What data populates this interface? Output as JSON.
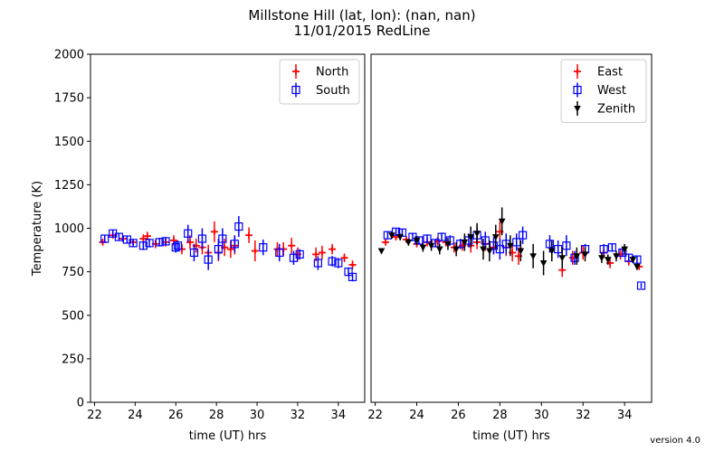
{
  "figure": {
    "title_line1": "Millstone Hill  (lat, lon):  (nan, nan)",
    "title_line2": "11/01/2015 RedLine",
    "version": "version 4.0"
  },
  "colors": {
    "North": "#ff0000",
    "South": "#0000ff",
    "East": "#ff0000",
    "West": "#0000ff",
    "Zenith": "#000000"
  },
  "chart_data": [
    {
      "type": "scatter",
      "panel": "left",
      "xlabel": "time (UT) hrs",
      "ylabel": "Temperature (K)",
      "xlim": [
        21.8,
        35.3
      ],
      "ylim": [
        0,
        2000
      ],
      "xticks": [
        22,
        24,
        26,
        28,
        30,
        32,
        34
      ],
      "yticks": [
        0,
        250,
        500,
        750,
        1000,
        1250,
        1500,
        1750,
        2000
      ],
      "legend_position": "top-right",
      "series": [
        {
          "name": "North",
          "marker": "plus",
          "points": [
            {
              "x": 22.4,
              "y": 920,
              "err": 20
            },
            {
              "x": 22.9,
              "y": 960,
              "err": 20
            },
            {
              "x": 23.4,
              "y": 940,
              "err": 20
            },
            {
              "x": 23.9,
              "y": 920,
              "err": 20
            },
            {
              "x": 24.4,
              "y": 940,
              "err": 25
            },
            {
              "x": 24.6,
              "y": 955,
              "err": 25
            },
            {
              "x": 25.0,
              "y": 910,
              "err": 25
            },
            {
              "x": 25.5,
              "y": 920,
              "err": 25
            },
            {
              "x": 25.9,
              "y": 930,
              "err": 30
            },
            {
              "x": 26.3,
              "y": 880,
              "err": 30
            },
            {
              "x": 26.7,
              "y": 920,
              "err": 40
            },
            {
              "x": 27.0,
              "y": 900,
              "err": 40
            },
            {
              "x": 27.3,
              "y": 890,
              "err": 40
            },
            {
              "x": 27.6,
              "y": 860,
              "err": 45
            },
            {
              "x": 27.9,
              "y": 980,
              "err": 60
            },
            {
              "x": 28.1,
              "y": 860,
              "err": 50
            },
            {
              "x": 28.4,
              "y": 890,
              "err": 50
            },
            {
              "x": 28.7,
              "y": 880,
              "err": 50
            },
            {
              "x": 28.9,
              "y": 900,
              "err": 50
            },
            {
              "x": 29.6,
              "y": 960,
              "err": 45
            },
            {
              "x": 29.9,
              "y": 870,
              "err": 60
            },
            {
              "x": 31.0,
              "y": 880,
              "err": 40
            },
            {
              "x": 31.3,
              "y": 880,
              "err": 40
            },
            {
              "x": 31.7,
              "y": 900,
              "err": 45
            },
            {
              "x": 32.0,
              "y": 850,
              "err": 40
            },
            {
              "x": 32.9,
              "y": 850,
              "err": 40
            },
            {
              "x": 33.2,
              "y": 860,
              "err": 40
            },
            {
              "x": 33.7,
              "y": 880,
              "err": 30
            },
            {
              "x": 34.3,
              "y": 830,
              "err": 25
            },
            {
              "x": 34.7,
              "y": 790,
              "err": 25
            }
          ]
        },
        {
          "name": "South",
          "marker": "square",
          "points": [
            {
              "x": 22.5,
              "y": 940,
              "err": 20
            },
            {
              "x": 22.9,
              "y": 970,
              "err": 20
            },
            {
              "x": 23.2,
              "y": 950,
              "err": 20
            },
            {
              "x": 23.6,
              "y": 935,
              "err": 20
            },
            {
              "x": 23.9,
              "y": 915,
              "err": 20
            },
            {
              "x": 24.4,
              "y": 900,
              "err": 25
            },
            {
              "x": 24.7,
              "y": 915,
              "err": 25
            },
            {
              "x": 25.2,
              "y": 920,
              "err": 25
            },
            {
              "x": 25.5,
              "y": 925,
              "err": 25
            },
            {
              "x": 26.0,
              "y": 890,
              "err": 30
            },
            {
              "x": 26.1,
              "y": 900,
              "err": 30
            },
            {
              "x": 26.6,
              "y": 970,
              "err": 50
            },
            {
              "x": 26.9,
              "y": 860,
              "err": 50
            },
            {
              "x": 27.3,
              "y": 940,
              "err": 60
            },
            {
              "x": 27.6,
              "y": 820,
              "err": 60
            },
            {
              "x": 28.1,
              "y": 880,
              "err": 60
            },
            {
              "x": 28.3,
              "y": 940,
              "err": 60
            },
            {
              "x": 28.9,
              "y": 910,
              "err": 50
            },
            {
              "x": 29.1,
              "y": 1010,
              "err": 60
            },
            {
              "x": 30.3,
              "y": 890,
              "err": 45
            },
            {
              "x": 31.1,
              "y": 860,
              "err": 50
            },
            {
              "x": 31.8,
              "y": 830,
              "err": 40
            },
            {
              "x": 32.1,
              "y": 850,
              "err": 30
            },
            {
              "x": 33.0,
              "y": 800,
              "err": 40
            },
            {
              "x": 33.7,
              "y": 810,
              "err": 30
            },
            {
              "x": 34.0,
              "y": 800,
              "err": 30
            },
            {
              "x": 34.5,
              "y": 750,
              "err": 25
            },
            {
              "x": 34.7,
              "y": 720,
              "err": 25
            }
          ]
        }
      ]
    },
    {
      "type": "scatter",
      "panel": "right",
      "xlabel": "time (UT) hrs",
      "ylabel": "",
      "xlim": [
        21.8,
        35.3
      ],
      "ylim": [
        0,
        2000
      ],
      "xticks": [
        22,
        24,
        26,
        28,
        30,
        32,
        34
      ],
      "yticks": [],
      "legend_position": "top-right",
      "series": [
        {
          "name": "East",
          "marker": "plus",
          "points": [
            {
              "x": 22.5,
              "y": 920,
              "err": 20
            },
            {
              "x": 23.0,
              "y": 950,
              "err": 20
            },
            {
              "x": 23.5,
              "y": 935,
              "err": 20
            },
            {
              "x": 24.0,
              "y": 910,
              "err": 20
            },
            {
              "x": 24.5,
              "y": 920,
              "err": 25
            },
            {
              "x": 25.0,
              "y": 925,
              "err": 25
            },
            {
              "x": 25.4,
              "y": 920,
              "err": 25
            },
            {
              "x": 25.8,
              "y": 890,
              "err": 30
            },
            {
              "x": 26.2,
              "y": 900,
              "err": 30
            },
            {
              "x": 26.6,
              "y": 900,
              "err": 40
            },
            {
              "x": 26.9,
              "y": 920,
              "err": 40
            },
            {
              "x": 27.3,
              "y": 910,
              "err": 40
            },
            {
              "x": 27.7,
              "y": 890,
              "err": 40
            },
            {
              "x": 28.0,
              "y": 980,
              "err": 60
            },
            {
              "x": 28.3,
              "y": 890,
              "err": 50
            },
            {
              "x": 28.6,
              "y": 860,
              "err": 50
            },
            {
              "x": 28.9,
              "y": 840,
              "err": 50
            },
            {
              "x": 31.0,
              "y": 760,
              "err": 40
            },
            {
              "x": 31.5,
              "y": 830,
              "err": 40
            },
            {
              "x": 32.0,
              "y": 860,
              "err": 40
            },
            {
              "x": 33.0,
              "y": 860,
              "err": 30
            },
            {
              "x": 33.3,
              "y": 800,
              "err": 30
            },
            {
              "x": 33.8,
              "y": 850,
              "err": 30
            },
            {
              "x": 34.2,
              "y": 810,
              "err": 25
            },
            {
              "x": 34.7,
              "y": 780,
              "err": 20
            }
          ]
        },
        {
          "name": "West",
          "marker": "square",
          "points": [
            {
              "x": 22.6,
              "y": 960,
              "err": 20
            },
            {
              "x": 23.0,
              "y": 980,
              "err": 20
            },
            {
              "x": 23.3,
              "y": 975,
              "err": 20
            },
            {
              "x": 23.8,
              "y": 950,
              "err": 20
            },
            {
              "x": 24.1,
              "y": 930,
              "err": 20
            },
            {
              "x": 24.5,
              "y": 940,
              "err": 25
            },
            {
              "x": 24.9,
              "y": 915,
              "err": 25
            },
            {
              "x": 25.2,
              "y": 950,
              "err": 25
            },
            {
              "x": 25.6,
              "y": 930,
              "err": 30
            },
            {
              "x": 26.1,
              "y": 910,
              "err": 30
            },
            {
              "x": 26.5,
              "y": 930,
              "err": 40
            },
            {
              "x": 26.9,
              "y": 960,
              "err": 50
            },
            {
              "x": 27.3,
              "y": 930,
              "err": 50
            },
            {
              "x": 27.7,
              "y": 900,
              "err": 50
            },
            {
              "x": 28.0,
              "y": 880,
              "err": 60
            },
            {
              "x": 28.3,
              "y": 910,
              "err": 60
            },
            {
              "x": 28.8,
              "y": 920,
              "err": 50
            },
            {
              "x": 29.1,
              "y": 960,
              "err": 50
            },
            {
              "x": 30.4,
              "y": 910,
              "err": 50
            },
            {
              "x": 30.8,
              "y": 880,
              "err": 50
            },
            {
              "x": 31.2,
              "y": 900,
              "err": 60
            },
            {
              "x": 31.6,
              "y": 830,
              "err": 40
            },
            {
              "x": 32.1,
              "y": 880,
              "err": 30
            },
            {
              "x": 33.0,
              "y": 880,
              "err": 30
            },
            {
              "x": 33.4,
              "y": 890,
              "err": 25
            },
            {
              "x": 33.9,
              "y": 860,
              "err": 25
            },
            {
              "x": 34.2,
              "y": 830,
              "err": 25
            },
            {
              "x": 34.6,
              "y": 820,
              "err": 20
            },
            {
              "x": 34.8,
              "y": 670,
              "err": 15
            }
          ]
        },
        {
          "name": "Zenith",
          "marker": "triangle",
          "points": [
            {
              "x": 22.3,
              "y": 870,
              "err": 15
            },
            {
              "x": 22.8,
              "y": 960,
              "err": 20
            },
            {
              "x": 23.2,
              "y": 950,
              "err": 20
            },
            {
              "x": 23.6,
              "y": 920,
              "err": 20
            },
            {
              "x": 24.0,
              "y": 930,
              "err": 25
            },
            {
              "x": 24.3,
              "y": 890,
              "err": 25
            },
            {
              "x": 24.7,
              "y": 900,
              "err": 30
            },
            {
              "x": 25.1,
              "y": 880,
              "err": 30
            },
            {
              "x": 25.5,
              "y": 910,
              "err": 35
            },
            {
              "x": 25.9,
              "y": 880,
              "err": 40
            },
            {
              "x": 26.3,
              "y": 920,
              "err": 50
            },
            {
              "x": 26.6,
              "y": 950,
              "err": 60
            },
            {
              "x": 26.9,
              "y": 970,
              "err": 60
            },
            {
              "x": 27.2,
              "y": 880,
              "err": 60
            },
            {
              "x": 27.5,
              "y": 870,
              "err": 60
            },
            {
              "x": 27.8,
              "y": 950,
              "err": 70
            },
            {
              "x": 28.1,
              "y": 1040,
              "err": 80
            },
            {
              "x": 28.5,
              "y": 900,
              "err": 60
            },
            {
              "x": 29.0,
              "y": 870,
              "err": 60
            },
            {
              "x": 29.6,
              "y": 840,
              "err": 70
            },
            {
              "x": 30.1,
              "y": 800,
              "err": 70
            },
            {
              "x": 30.5,
              "y": 870,
              "err": 60
            },
            {
              "x": 31.0,
              "y": 830,
              "err": 60
            },
            {
              "x": 31.7,
              "y": 840,
              "err": 50
            },
            {
              "x": 32.1,
              "y": 850,
              "err": 40
            },
            {
              "x": 32.9,
              "y": 830,
              "err": 30
            },
            {
              "x": 33.2,
              "y": 820,
              "err": 30
            },
            {
              "x": 33.6,
              "y": 840,
              "err": 30
            },
            {
              "x": 34.0,
              "y": 880,
              "err": 30
            },
            {
              "x": 34.4,
              "y": 820,
              "err": 20
            },
            {
              "x": 34.6,
              "y": 780,
              "err": 20
            }
          ]
        }
      ]
    }
  ]
}
